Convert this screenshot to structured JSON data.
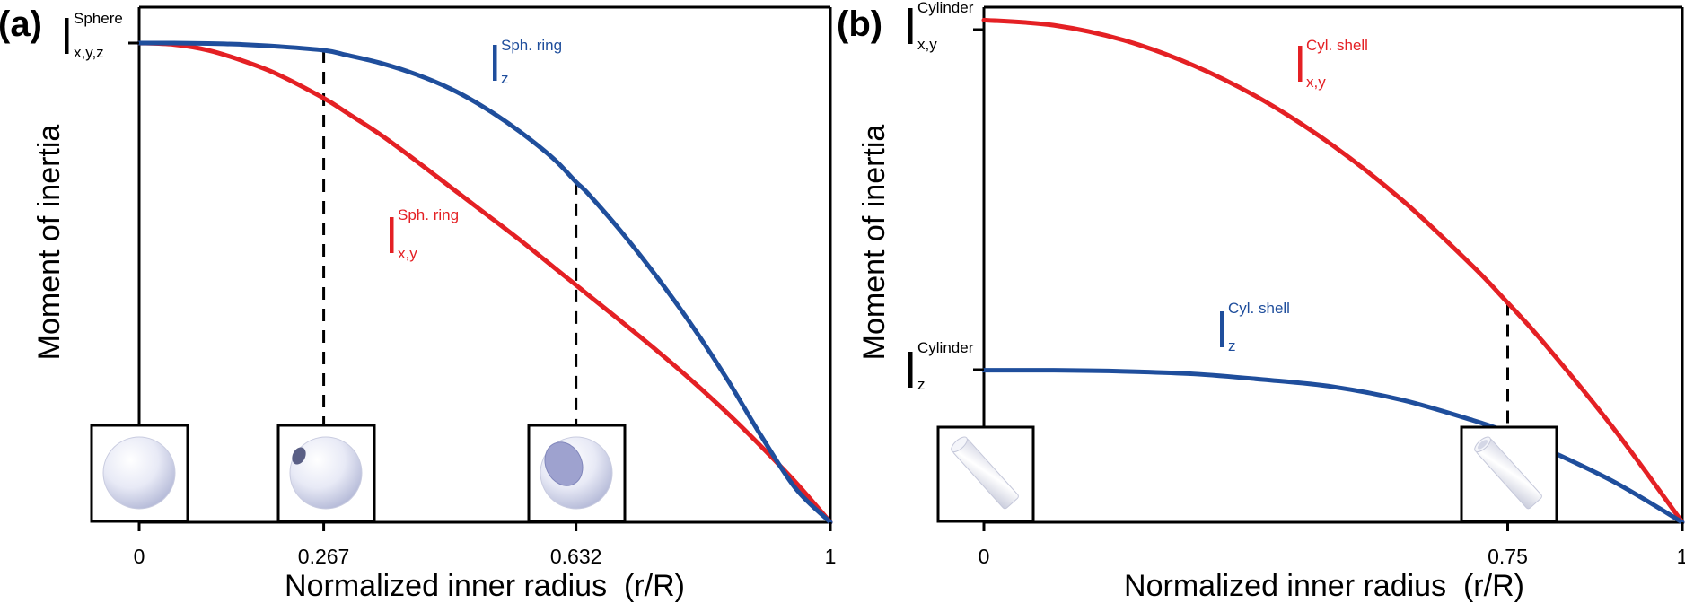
{
  "panels": {
    "a": {
      "label": "(a)"
    },
    "b": {
      "label": "(b)"
    }
  },
  "colors": {
    "red": "#e42024",
    "blue": "#1f4e9c",
    "axis": "#000000"
  },
  "chart_data": [
    {
      "type": "line",
      "panel": "a",
      "xlabel": "Normalized inner radius  (r/R)",
      "ylabel": "Moment of inertia",
      "xlim": [
        0,
        1
      ],
      "ylim": [
        0,
        1
      ],
      "x_ticks": [
        "0",
        "0.267",
        "0.632",
        "1"
      ],
      "y_tick_labels": [
        {
          "y": 1.0,
          "main": "I",
          "sup": "Sphere",
          "sub": "x,y,z"
        }
      ],
      "markers": [
        0.267,
        0.632
      ],
      "series": [
        {
          "color": "red",
          "label": {
            "main": "I",
            "sup": "Sph. ring",
            "sub": "x,y"
          },
          "x": [
            0,
            0.05,
            0.1,
            0.15,
            0.2,
            0.267,
            0.3,
            0.35,
            0.4,
            0.45,
            0.5,
            0.55,
            0.6,
            0.632,
            0.65,
            0.7,
            0.75,
            0.8,
            0.85,
            0.9,
            0.95,
            1.0
          ],
          "y": [
            1.0,
            0.997,
            0.985,
            0.963,
            0.935,
            0.885,
            0.855,
            0.808,
            0.755,
            0.7,
            0.645,
            0.59,
            0.532,
            0.495,
            0.474,
            0.416,
            0.357,
            0.295,
            0.229,
            0.158,
            0.083,
            0.0
          ]
        },
        {
          "color": "blue",
          "label": {
            "main": "I",
            "sup": "Sph. ring",
            "sub": "z"
          },
          "x": [
            0,
            0.05,
            0.1,
            0.15,
            0.2,
            0.267,
            0.3,
            0.35,
            0.4,
            0.45,
            0.5,
            0.55,
            0.6,
            0.632,
            0.65,
            0.7,
            0.75,
            0.8,
            0.85,
            0.9,
            0.95,
            1.0
          ],
          "y": [
            1.0,
            1.0,
            0.999,
            0.997,
            0.993,
            0.985,
            0.975,
            0.958,
            0.935,
            0.905,
            0.865,
            0.816,
            0.758,
            0.71,
            0.685,
            0.602,
            0.51,
            0.41,
            0.3,
            0.18,
            0.07,
            0.0
          ]
        }
      ],
      "insets": [
        "sphere-solid",
        "sphere-small-hole",
        "sphere-large-hole"
      ]
    },
    {
      "type": "line",
      "panel": "b",
      "xlabel": "Normalized inner radius  (r/R)",
      "ylabel": "Moment of inertia",
      "xlim": [
        0,
        1
      ],
      "ylim": [
        0,
        1
      ],
      "x_ticks": [
        "0",
        "0.75",
        "1"
      ],
      "y_tick_labels": [
        {
          "y": 0.975,
          "main": "I",
          "sup": "Cylinder",
          "sub": "x,y"
        },
        {
          "y": 0.295,
          "main": "I",
          "sup": "Cylinder",
          "sub": "z"
        }
      ],
      "markers": [
        0.75
      ],
      "series": [
        {
          "color": "red",
          "label": {
            "main": "I",
            "sup": "Cyl. shell",
            "sub": "x,y"
          },
          "x": [
            0,
            0.1,
            0.2,
            0.3,
            0.4,
            0.5,
            0.6,
            0.7,
            0.75,
            0.8,
            0.9,
            1.0
          ],
          "y": [
            0.975,
            0.965,
            0.936,
            0.887,
            0.819,
            0.731,
            0.624,
            0.497,
            0.426,
            0.351,
            0.185,
            0.0
          ]
        },
        {
          "color": "blue",
          "label": {
            "main": "I",
            "sup": "Cyl. shell",
            "sub": "z"
          },
          "x": [
            0,
            0.1,
            0.2,
            0.3,
            0.4,
            0.5,
            0.6,
            0.7,
            0.75,
            0.8,
            0.9,
            1.0
          ],
          "y": [
            0.295,
            0.295,
            0.293,
            0.288,
            0.277,
            0.263,
            0.237,
            0.198,
            0.175,
            0.145,
            0.08,
            0.0
          ]
        }
      ],
      "insets": [
        "cylinder-solid",
        "cylinder-hollow"
      ]
    }
  ]
}
